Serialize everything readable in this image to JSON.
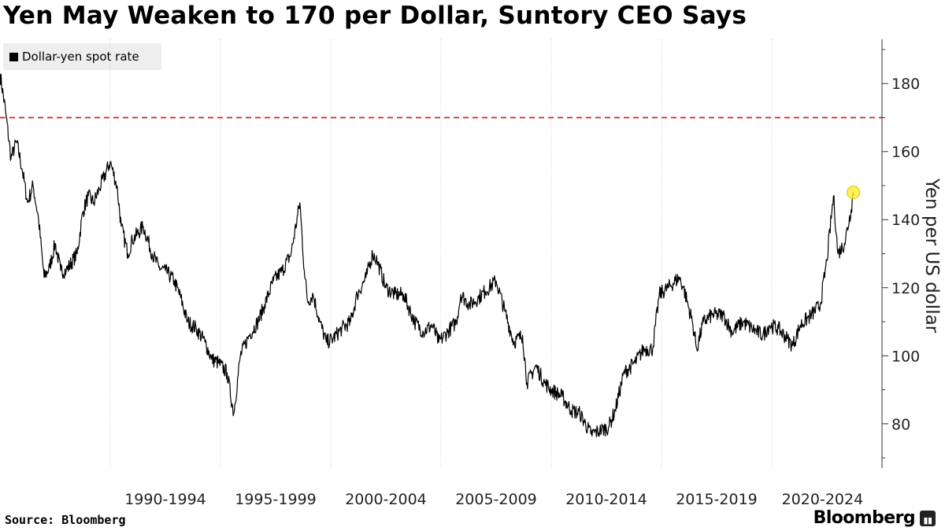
{
  "title": "Yen May Weaken to 170 per Dollar, Suntory CEO Says",
  "source": "Source: Bloomberg",
  "brand": "Bloomberg",
  "chart_data": {
    "type": "line",
    "title": "Yen May Weaken to 170 per Dollar, Suntory CEO Says",
    "ylabel": "Yen per US dollar",
    "xlabel": "",
    "legend": {
      "placement": "top-left",
      "entries": [
        "Dollar-yen spot rate"
      ]
    },
    "ylim": [
      67,
      193
    ],
    "xlim": [
      1985.0,
      2025.0
    ],
    "yticks": [
      80,
      100,
      120,
      140,
      160,
      180
    ],
    "xtick_labels": [
      "1990-1994",
      "1995-1999",
      "2000-2004",
      "2005-2009",
      "2010-2014",
      "2015-2019",
      "2020-2024"
    ],
    "xgrid": [
      1990,
      1995,
      2000,
      2005,
      2010,
      2015,
      2020
    ],
    "reference_line": {
      "value": 170,
      "color": "#e8191f",
      "style": "dashed"
    },
    "highlight_point": {
      "x": 2023.7,
      "y": 148,
      "color": "#ffee22"
    },
    "grid": "vertical-dotted",
    "series": [
      {
        "name": "Dollar-yen spot rate",
        "color": "#000000",
        "x": [
          1985.0,
          1985.25,
          1985.5,
          1985.75,
          1986.0,
          1986.25,
          1986.5,
          1986.75,
          1987.0,
          1987.25,
          1987.5,
          1987.75,
          1988.0,
          1988.5,
          1988.75,
          1989.0,
          1989.25,
          1989.5,
          1990.0,
          1990.3,
          1990.5,
          1990.8,
          1991.0,
          1991.5,
          1991.9,
          1992.2,
          1992.5,
          1992.9,
          1993.2,
          1993.5,
          1993.9,
          1994.3,
          1994.6,
          1994.9,
          1995.3,
          1995.6,
          1995.9,
          1996.3,
          1996.7,
          1997.0,
          1997.4,
          1997.8,
          1998.2,
          1998.6,
          1998.8,
          1998.95,
          1999.2,
          1999.5,
          1999.8,
          2000.1,
          2000.5,
          2000.9,
          2001.2,
          2001.6,
          2001.9,
          2002.1,
          2002.5,
          2002.9,
          2003.3,
          2003.8,
          2004.2,
          2004.6,
          2004.9,
          2005.3,
          2005.7,
          2005.9,
          2006.3,
          2006.7,
          2007.0,
          2007.5,
          2007.9,
          2008.3,
          2008.7,
          2008.9,
          2009.3,
          2009.7,
          2010.0,
          2010.5,
          2010.9,
          2011.3,
          2011.8,
          2012.2,
          2012.6,
          2012.9,
          2013.3,
          2013.8,
          2014.2,
          2014.6,
          2014.9,
          2015.3,
          2015.8,
          2016.0,
          2016.4,
          2016.6,
          2016.9,
          2017.3,
          2017.8,
          2018.2,
          2018.7,
          2019.1,
          2019.6,
          2019.9,
          2020.3,
          2020.7,
          2020.95,
          2021.3,
          2021.8,
          2022.2,
          2022.5,
          2022.8,
          2023.0,
          2023.3,
          2023.6,
          2023.7
        ],
        "y": [
          183,
          172,
          158,
          163,
          155,
          145,
          150,
          140,
          123,
          126,
          133,
          125,
          125,
          130,
          142,
          147,
          145,
          149,
          157,
          150,
          138,
          130,
          134,
          138,
          130,
          126,
          125,
          122,
          117,
          110,
          108,
          104,
          99,
          98,
          95,
          83,
          100,
          106,
          110,
          115,
          122,
          125,
          130,
          145,
          125,
          116,
          118,
          110,
          104,
          105,
          108,
          110,
          118,
          123,
          130,
          128,
          120,
          118,
          118,
          110,
          107,
          109,
          104,
          107,
          110,
          118,
          115,
          117,
          119,
          122,
          113,
          104,
          106,
          92,
          97,
          92,
          90,
          88,
          84,
          83,
          77,
          78,
          79,
          84,
          95,
          98,
          102,
          102,
          118,
          120,
          123,
          120,
          110,
          102,
          110,
          112,
          112,
          107,
          110,
          108,
          106,
          109,
          108,
          105,
          103,
          109,
          112,
          115,
          128,
          147,
          130,
          133,
          143,
          148
        ]
      }
    ]
  }
}
